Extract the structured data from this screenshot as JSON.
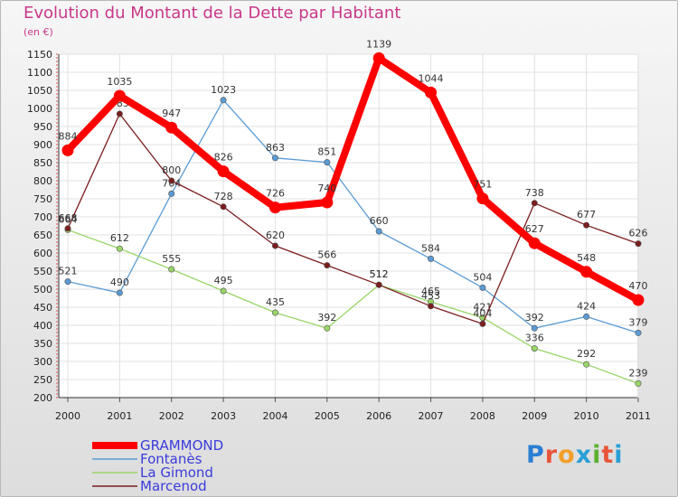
{
  "title": "Evolution du Montant de la Dette par Habitant",
  "unit": "(en €)",
  "brand": {
    "name": "Proxiti",
    "letter_colors": [
      "#2a7fd4",
      "#e8563a",
      "#f2a02a",
      "#2a9fd6",
      "#5cb030",
      "#e8563a",
      "#2a9fd6"
    ]
  },
  "chart_data": {
    "type": "line",
    "x": [
      "2000",
      "2001",
      "2002",
      "2003",
      "2004",
      "2005",
      "2006",
      "2007",
      "2008",
      "2009",
      "2010",
      "2011"
    ],
    "ylim": [
      200,
      1150
    ],
    "yticks": [
      200,
      250,
      300,
      350,
      400,
      450,
      500,
      550,
      600,
      650,
      700,
      750,
      800,
      850,
      900,
      950,
      1000,
      1050,
      1100,
      1150
    ],
    "grid": true,
    "legend_position": "bottom-left",
    "series": [
      {
        "name": "GRAMMOND",
        "color": "#ff0000",
        "emphasis": true,
        "values": [
          884,
          1035,
          947,
          826,
          726,
          740,
          1139,
          1044,
          751,
          627,
          548,
          470
        ]
      },
      {
        "name": "Fontanès",
        "color": "#5a9bd4",
        "values": [
          521,
          490,
          764,
          1023,
          863,
          851,
          660,
          584,
          504,
          392,
          424,
          379
        ]
      },
      {
        "name": "La Gimond",
        "color": "#99d568",
        "values": [
          664,
          612,
          555,
          495,
          435,
          392,
          512,
          465,
          421,
          336,
          292,
          239
        ]
      },
      {
        "name": "Marcenod",
        "color": "#7a1e1e",
        "values": [
          668,
          985,
          800,
          728,
          620,
          566,
          512,
          453,
          404,
          738,
          677,
          626
        ]
      }
    ]
  }
}
